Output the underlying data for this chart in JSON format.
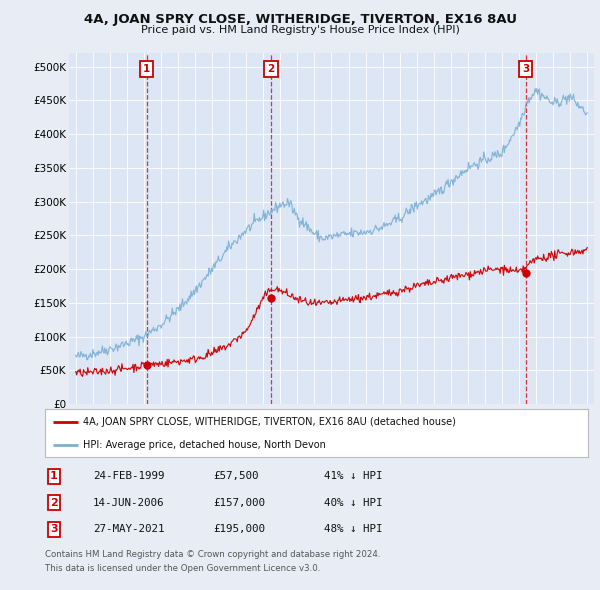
{
  "title": "4A, JOAN SPRY CLOSE, WITHERIDGE, TIVERTON, EX16 8AU",
  "subtitle": "Price paid vs. HM Land Registry's House Price Index (HPI)",
  "legend_label_red": "4A, JOAN SPRY CLOSE, WITHERIDGE, TIVERTON, EX16 8AU (detached house)",
  "legend_label_blue": "HPI: Average price, detached house, North Devon",
  "footer_line1": "Contains HM Land Registry data © Crown copyright and database right 2024.",
  "footer_line2": "This data is licensed under the Open Government Licence v3.0.",
  "transactions": [
    {
      "num": 1,
      "date": "24-FEB-1999",
      "price": 57500,
      "price_str": "£57,500",
      "pct": "41%",
      "x_year": 1999.15
    },
    {
      "num": 2,
      "date": "14-JUN-2006",
      "price": 157000,
      "price_str": "£157,000",
      "pct": "40%",
      "x_year": 2006.45
    },
    {
      "num": 3,
      "date": "27-MAY-2021",
      "price": 195000,
      "price_str": "£195,000",
      "pct": "48%",
      "x_year": 2021.4
    }
  ],
  "ylim": [
    0,
    520000
  ],
  "xlim_start": 1994.6,
  "xlim_end": 2025.4,
  "background_color": "#e8edf5",
  "plot_bg_color": "#dce6f5",
  "red_color": "#cc0000",
  "blue_color": "#7bafd4",
  "grid_color": "#ffffff",
  "hpi_keypoints_x": [
    1995,
    1996,
    1997,
    1998,
    1999,
    2000,
    2001,
    2002,
    2003,
    2004,
    2005,
    2006,
    2007,
    2007.5,
    2008,
    2009,
    2009.5,
    2010,
    2011,
    2012,
    2013,
    2014,
    2015,
    2016,
    2017,
    2018,
    2019,
    2020,
    2021,
    2021.5,
    2022,
    2022.5,
    2023,
    2024,
    2025
  ],
  "hpi_keypoints_y": [
    70000,
    75000,
    82000,
    90000,
    100000,
    118000,
    140000,
    168000,
    200000,
    232000,
    258000,
    278000,
    295000,
    298000,
    278000,
    252000,
    245000,
    248000,
    252000,
    255000,
    262000,
    275000,
    295000,
    308000,
    330000,
    350000,
    362000,
    372000,
    415000,
    450000,
    465000,
    455000,
    445000,
    455000,
    430000
  ],
  "red_keypoints_x": [
    1995,
    1996,
    1997,
    1998,
    1999,
    2000,
    2001,
    2002,
    2003,
    2004,
    2005,
    2006,
    2006.5,
    2007,
    2007.5,
    2008,
    2009,
    2010,
    2011,
    2012,
    2013,
    2014,
    2015,
    2016,
    2017,
    2018,
    2019,
    2020,
    2021,
    2022,
    2023,
    2024,
    2025
  ],
  "red_keypoints_y": [
    46000,
    47000,
    50000,
    53000,
    57500,
    60000,
    63000,
    67000,
    75000,
    88000,
    108000,
    157000,
    172000,
    168000,
    162000,
    155000,
    148000,
    150000,
    155000,
    158000,
    162000,
    168000,
    175000,
    180000,
    187000,
    192000,
    198000,
    200000,
    195000,
    215000,
    220000,
    225000,
    228000
  ]
}
